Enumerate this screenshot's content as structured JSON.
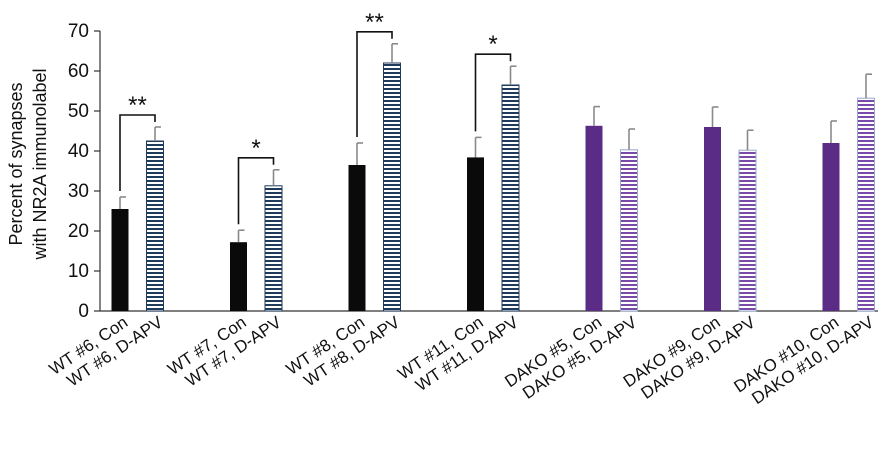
{
  "chart_data": {
    "type": "bar",
    "ylabel_lines": [
      "Percent of synapses",
      "with NR2A immunolabel"
    ],
    "ylim": [
      0,
      70
    ],
    "yticks": [
      0,
      10,
      20,
      30,
      40,
      50,
      60,
      70
    ],
    "grid": false,
    "groups": [
      {
        "bars": [
          {
            "label": "WT #6, Con",
            "value": 25.5,
            "error": 3,
            "style": "solid-black"
          },
          {
            "label": "WT #6, D-APV",
            "value": 42.5,
            "error": 3.5,
            "style": "hatch-blue"
          }
        ],
        "significance": "**"
      },
      {
        "bars": [
          {
            "label": "WT #7, Con",
            "value": 17.2,
            "error": 3,
            "style": "solid-black"
          },
          {
            "label": "WT #7, D-APV",
            "value": 31.3,
            "error": 4,
            "style": "hatch-blue"
          }
        ],
        "significance": "*"
      },
      {
        "bars": [
          {
            "label": "WT #8, Con",
            "value": 36.5,
            "error": 5.5,
            "style": "solid-black"
          },
          {
            "label": "WT #8, D-APV",
            "value": 62,
            "error": 4.8,
            "style": "hatch-blue"
          }
        ],
        "significance": "**"
      },
      {
        "bars": [
          {
            "label": "WT #11, Con",
            "value": 38.4,
            "error": 5,
            "style": "solid-black"
          },
          {
            "label": "WT #11, D-APV",
            "value": 56.5,
            "error": 4.7,
            "style": "hatch-blue"
          }
        ],
        "significance": "*"
      },
      {
        "bars": [
          {
            "label": "DAKO #5, Con",
            "value": 46.3,
            "error": 4.8,
            "style": "solid-purple"
          },
          {
            "label": "DAKO #5, D-APV",
            "value": 40.3,
            "error": 5.2,
            "style": "hatch-purple"
          }
        ],
        "significance": ""
      },
      {
        "bars": [
          {
            "label": "DAKO #9, Con",
            "value": 46,
            "error": 5,
            "style": "solid-purple"
          },
          {
            "label": "DAKO #9, D-APV",
            "value": 40.2,
            "error": 5,
            "style": "hatch-purple"
          }
        ],
        "significance": ""
      },
      {
        "bars": [
          {
            "label": "DAKO #10, Con",
            "value": 42,
            "error": 5.5,
            "style": "solid-purple"
          },
          {
            "label": "DAKO #10, D-APV",
            "value": 53.2,
            "error": 6,
            "style": "hatch-purple"
          }
        ],
        "significance": ""
      }
    ]
  },
  "colors": {
    "solid_black": "#0a0a0a",
    "solid_purple": "#5a2c86",
    "hatch_blue_line": "#1f3b5c",
    "hatch_purple_line": "#7a4aa8",
    "error_bar": "#8a8a8a",
    "axis": "#333333"
  }
}
